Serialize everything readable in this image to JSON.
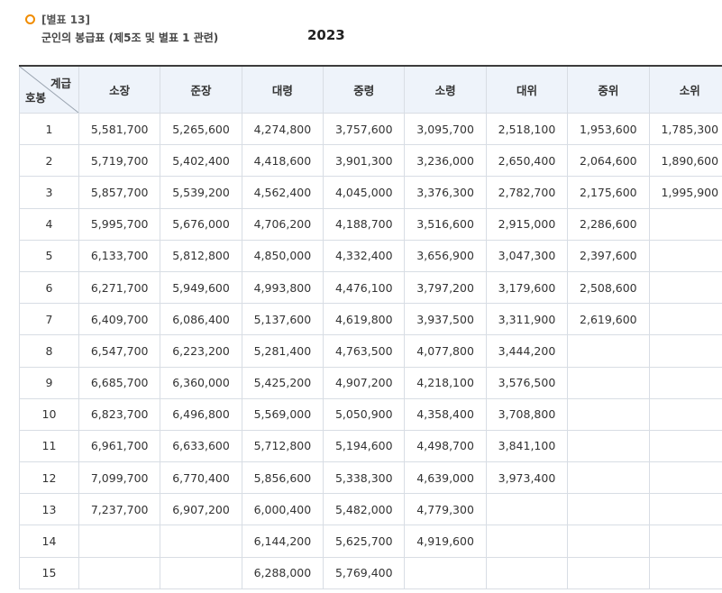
{
  "header": {
    "tag": "[별표 13]",
    "caption": "군인의 봉급표 (제5조 및 별표 1 관련)",
    "year": "2023"
  },
  "table": {
    "corner_top": "계급",
    "corner_bottom": "호봉",
    "columns": [
      "소장",
      "준장",
      "대령",
      "중령",
      "소령",
      "대위",
      "중위",
      "소위"
    ],
    "rows": [
      {
        "step": "1",
        "values": [
          "5,581,700",
          "5,265,600",
          "4,274,800",
          "3,757,600",
          "3,095,700",
          "2,518,100",
          "1,953,600",
          "1,785,300"
        ]
      },
      {
        "step": "2",
        "values": [
          "5,719,700",
          "5,402,400",
          "4,418,600",
          "3,901,300",
          "3,236,000",
          "2,650,400",
          "2,064,600",
          "1,890,600"
        ]
      },
      {
        "step": "3",
        "values": [
          "5,857,700",
          "5,539,200",
          "4,562,400",
          "4,045,000",
          "3,376,300",
          "2,782,700",
          "2,175,600",
          "1,995,900"
        ]
      },
      {
        "step": "4",
        "values": [
          "5,995,700",
          "5,676,000",
          "4,706,200",
          "4,188,700",
          "3,516,600",
          "2,915,000",
          "2,286,600",
          ""
        ]
      },
      {
        "step": "5",
        "values": [
          "6,133,700",
          "5,812,800",
          "4,850,000",
          "4,332,400",
          "3,656,900",
          "3,047,300",
          "2,397,600",
          ""
        ]
      },
      {
        "step": "6",
        "values": [
          "6,271,700",
          "5,949,600",
          "4,993,800",
          "4,476,100",
          "3,797,200",
          "3,179,600",
          "2,508,600",
          ""
        ]
      },
      {
        "step": "7",
        "values": [
          "6,409,700",
          "6,086,400",
          "5,137,600",
          "4,619,800",
          "3,937,500",
          "3,311,900",
          "2,619,600",
          ""
        ]
      },
      {
        "step": "8",
        "values": [
          "6,547,700",
          "6,223,200",
          "5,281,400",
          "4,763,500",
          "4,077,800",
          "3,444,200",
          "",
          ""
        ]
      },
      {
        "step": "9",
        "values": [
          "6,685,700",
          "6,360,000",
          "5,425,200",
          "4,907,200",
          "4,218,100",
          "3,576,500",
          "",
          ""
        ]
      },
      {
        "step": "10",
        "values": [
          "6,823,700",
          "6,496,800",
          "5,569,000",
          "5,050,900",
          "4,358,400",
          "3,708,800",
          "",
          ""
        ]
      },
      {
        "step": "11",
        "values": [
          "6,961,700",
          "6,633,600",
          "5,712,800",
          "5,194,600",
          "4,498,700",
          "3,841,100",
          "",
          ""
        ]
      },
      {
        "step": "12",
        "values": [
          "7,099,700",
          "6,770,400",
          "5,856,600",
          "5,338,300",
          "4,639,000",
          "3,973,400",
          "",
          ""
        ]
      },
      {
        "step": "13",
        "values": [
          "7,237,700",
          "6,907,200",
          "6,000,400",
          "5,482,000",
          "4,779,300",
          "",
          "",
          ""
        ]
      },
      {
        "step": "14",
        "values": [
          "",
          "",
          "6,144,200",
          "5,625,700",
          "4,919,600",
          "",
          "",
          ""
        ]
      },
      {
        "step": "15",
        "values": [
          "",
          "",
          "6,288,000",
          "5,769,400",
          "",
          "",
          "",
          ""
        ]
      }
    ]
  }
}
